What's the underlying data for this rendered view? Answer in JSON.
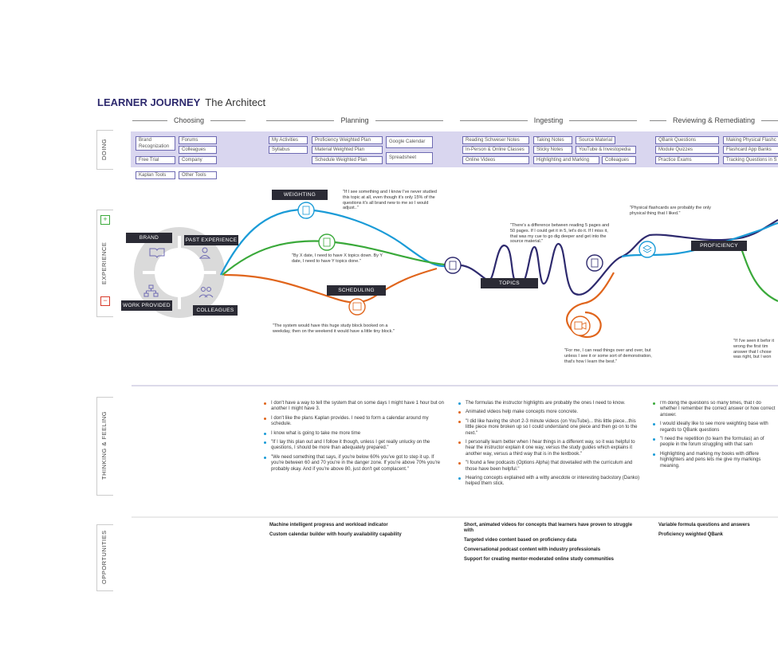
{
  "header": {
    "title_strong": "LEARNER JOURNEY",
    "title_rest": "The Architect"
  },
  "phases": [
    "Choosing",
    "Planning",
    "Ingesting",
    "Reviewing & Remediating"
  ],
  "row_labels": {
    "doing": "DOING",
    "experience": "EXPERIENCE",
    "thinking": "THINKING & FEELING",
    "opportunities": "OPPORTUNITIES"
  },
  "doing": {
    "brand_recognization": "Brand Recognization",
    "forums": "Forums",
    "colleagues": "Colleagues",
    "free_trial": "Free Trial",
    "company": "Company",
    "kaplan_tools": "Kaplan Tools",
    "other_tools": "Other Tools",
    "my_activities": "My Activities",
    "syllabus": "Syllabus",
    "proficiency_weighted_plan": "Proficiency Weighted Plan",
    "material_weighted_plan": "Material Weighted Plan",
    "schedule_weighted_plan": "Schedule Weighted Plan",
    "google_calendar": "Google Calendar",
    "spreadsheet": "Spreadsheet",
    "reading_schweser": "Reading Schweser Notes",
    "in_person": "In-Person & Online Classes",
    "online_videos": "Online Videos",
    "taking_notes": "Taking Notes",
    "sticky_notes": "Sticky Notes",
    "highlighting": "Highlighting and Marking",
    "source_material": "Source Material",
    "youtube": "YouTube & Investopedia",
    "colleagues2": "Colleagues",
    "qbank_questions": "QBank Questions",
    "module_quizzes": "Module Quizzes",
    "practice_exams": "Practice Exams",
    "making_flashcards": "Making Physical Flashc",
    "flashcard_apps": "Flashcard App Banks",
    "tracking_questions": "Tracking Questions in S"
  },
  "experience": {
    "plus": "+",
    "minus": "−",
    "brand": "BRAND",
    "past_experience": "PAST EXPERIENCE",
    "work_provided": "WORK PROVIDED",
    "colleagues": "COLLEAGUES",
    "weighting": "WEIGHTING",
    "scheduling": "SCHEDULING",
    "topics": "TOPICS",
    "proficiency": "PROFICIENCY",
    "quote_weighting": "\"If I see something and I know I've never studied this topic at all, even though it's only 15% of the questions it's all brand new to me so I would adjust..\"",
    "quote_xdate": "\"By X date, I need to have X topics down. By Y date, I need to have Y topics done.\"",
    "quote_system": "\"The system would have this huge study block booked on a weekday, then on the weekend it would have a little tiny block.\"",
    "quote_reading": "\"There's a difference between reading 5 pages and 50 pages. If I could get it in 5, let's do it. If I miss it, that was my cue to go dig deeper and get into the source material.\"",
    "quote_demo": "\"For me, I can read things over and over, but unless I see it or some sort of demonstration, that's how I learn the best.\"",
    "quote_flashcards": "\"Physical flashcards are probably the only physical thing that I liked.\"",
    "quote_seen": "\"If I've seen it befor it wrong the first tim answer that I chose was right, but I won"
  },
  "thinking": {
    "planning": [
      {
        "c": "#e0651c",
        "t": "I don't have a way to tell the system that on some days I might have 1 hour but on another I might have 3."
      },
      {
        "c": "#e0651c",
        "t": "I don't like the plans Kaplan provides. I need to form a calendar around my schedule."
      },
      {
        "c": "#1a9bd7",
        "t": "I know what is going to take me more time"
      },
      {
        "c": "#1a9bd7",
        "t": "\"If I lay this plan out and I follow it though, unless I get really unlucky on the questions, I should be more than adequately prepared.\""
      },
      {
        "c": "#1a9bd7",
        "t": "\"We need something that says, if you're below 60% you've got to step it up. If you're between 60 and 70 you're in the danger zone. If you're above 70% you're probably okay. And if you're above 80, just don't get complacent.\""
      }
    ],
    "ingesting": [
      {
        "c": "#1a9bd7",
        "t": "The formulas the instructor highlights are probably the ones I need to know."
      },
      {
        "c": "#e0651c",
        "t": "Animated videos help make concepts more concrete."
      },
      {
        "c": "#e0651c",
        "t": "\"I did like having the short 2-3 minute videos (on YouTube)... this little piece...this little piece more broken up so I could understand one piece and then go on to the next.\""
      },
      {
        "c": "#e0651c",
        "t": "I personally learn better when I hear things in a different way, so it was helpful to hear the instructor explain it one way, versus the study guides which explains it another way, versus a third way that is in the textbook.\""
      },
      {
        "c": "#e0651c",
        "t": "\"I found a few podcasts (Options Alpha) that dovetailed with the curriculum and those have been helpful.\""
      },
      {
        "c": "#1a9bd7",
        "t": "Hearing concepts explained with a witty anecdote or interesting backstory (Danko) helped them stick."
      }
    ],
    "reviewing": [
      {
        "c": "#3aa93a",
        "t": "I'm doing the questions so many times, that I do whether I remember the correct answer or how correct answer."
      },
      {
        "c": "#1a9bd7",
        "t": "I would ideally like to see more weighting base with regards to QBank questions"
      },
      {
        "c": "#1a9bd7",
        "t": "\"I need the repetition (to learn the formulas) an of people in the forum struggling with that sam"
      },
      {
        "c": "#1a9bd7",
        "t": "Highlighting and marking my books with differe highlighters and pens lets me give my markings meaning."
      }
    ]
  },
  "opportunities": {
    "planning": [
      "Machine intelligent progress and workload indicator",
      "Custom calendar builder with hourly availability capability"
    ],
    "ingesting": [
      "Short, animated videos for concepts that learners have proven to struggle with",
      "Targeted video content based on proficiency data",
      "Conversational podcast content with industry professionals",
      "Support for creating mentor-moderated online study communities"
    ],
    "reviewing": [
      "Variable formula questions and answers",
      "Proficiency weighted QBank"
    ]
  },
  "colors": {
    "blue": "#1a9bd7",
    "green": "#3aa93a",
    "orange": "#e0651c",
    "navy": "#2e2a6e",
    "band": "#d9d6ef"
  }
}
